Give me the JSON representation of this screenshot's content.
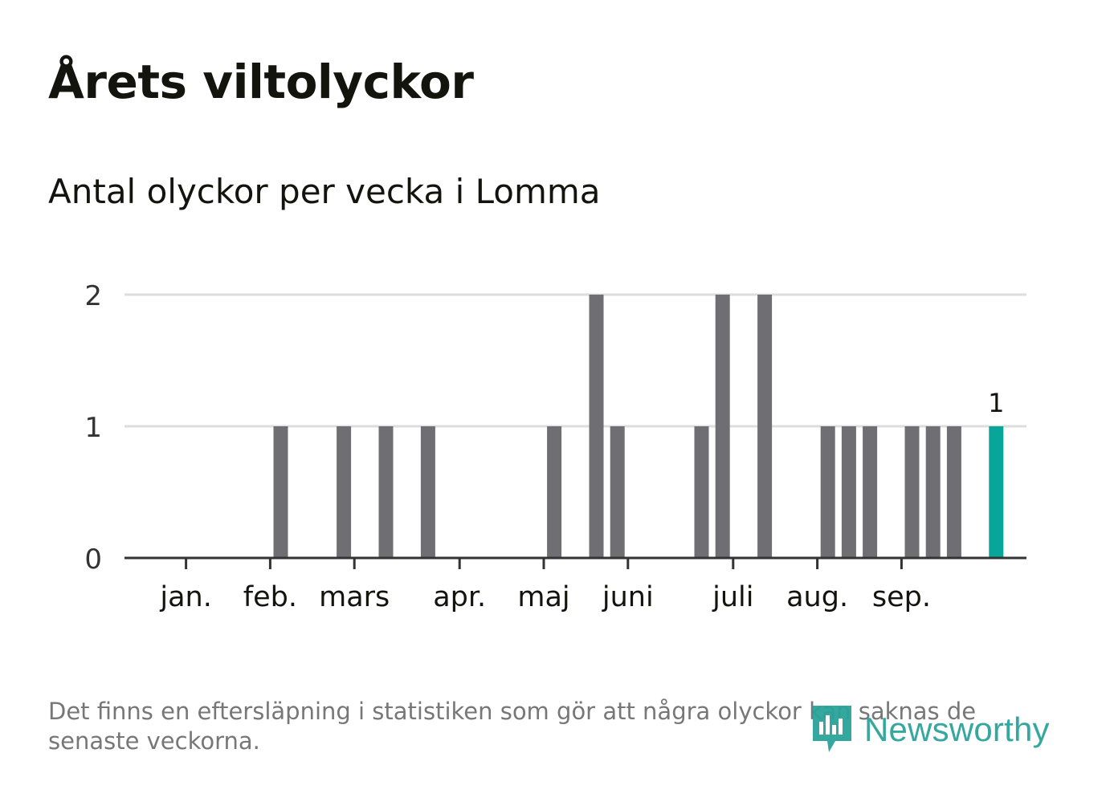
{
  "title": "Årets viltolyckor",
  "subtitle": "Antal olyckor per vecka i Lomma",
  "footnote": "Det finns en eftersläpning i statistiken som gör att några olyckor kan saknas de senaste veckorna.",
  "logo": {
    "text": "Newsworthy",
    "icon": "newsworthy-logo-icon"
  },
  "colors": {
    "bar": "#6f6e73",
    "highlight": "#08a69a",
    "grid": "#dddddd",
    "axis": "#333333",
    "text": "#14140f",
    "muted": "#777777",
    "logo": "#2aa39a"
  },
  "chart_data": {
    "type": "bar",
    "title": "Årets viltolyckor",
    "subtitle": "Antal olyckor per vecka i Lomma",
    "xlabel": "",
    "ylabel": "",
    "ylim": [
      0,
      2
    ],
    "yticks": [
      0,
      1,
      2
    ],
    "grid": true,
    "x_unit": "vecka",
    "weeks": [
      1,
      2,
      3,
      4,
      5,
      6,
      7,
      8,
      9,
      10,
      11,
      12,
      13,
      14,
      15,
      16,
      17,
      18,
      19,
      20,
      21,
      22,
      23,
      24,
      25,
      26,
      27,
      28,
      29,
      30,
      31,
      32,
      33,
      34,
      35,
      36,
      37,
      38,
      39,
      40,
      41,
      42
    ],
    "values": [
      0,
      0,
      0,
      0,
      0,
      1,
      0,
      0,
      1,
      0,
      1,
      0,
      1,
      0,
      0,
      0,
      0,
      0,
      1,
      0,
      2,
      1,
      0,
      0,
      0,
      1,
      2,
      0,
      2,
      0,
      0,
      1,
      1,
      1,
      0,
      1,
      1,
      1,
      0,
      1,
      0,
      0
    ],
    "highlight": {
      "week": 40,
      "value": 1,
      "label": "1"
    },
    "month_ticks": [
      {
        "label": "jan.",
        "week": 1.5
      },
      {
        "label": "feb.",
        "week": 5.5
      },
      {
        "label": "mars",
        "week": 9.5
      },
      {
        "label": "apr.",
        "week": 14.5
      },
      {
        "label": "maj",
        "week": 18.5
      },
      {
        "label": "juni",
        "week": 22.5
      },
      {
        "label": "juli",
        "week": 27.5
      },
      {
        "label": "aug.",
        "week": 31.5
      },
      {
        "label": "sep.",
        "week": 35.5
      }
    ]
  }
}
